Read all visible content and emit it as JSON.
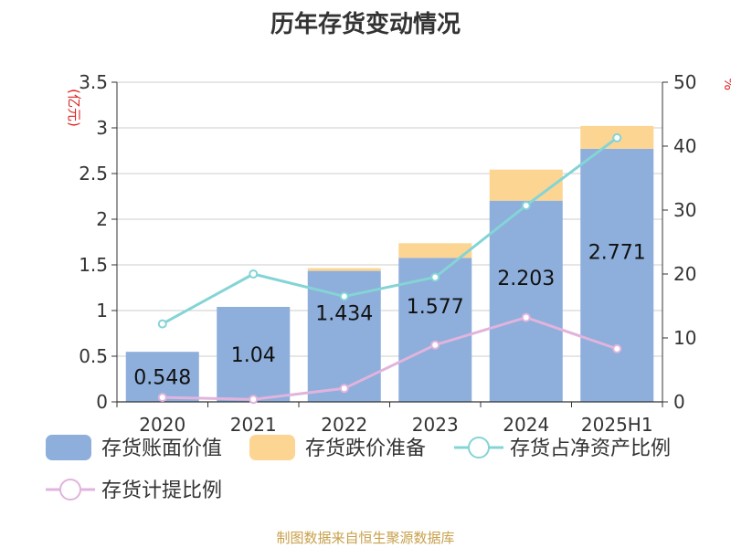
{
  "chart_data": {
    "type": "bar",
    "title": "历年存货变动情况",
    "categories": [
      "2020",
      "2021",
      "2022",
      "2023",
      "2024",
      "2025H1"
    ],
    "y_left": {
      "unit_label": "(亿元)",
      "ylim": [
        0,
        3.5
      ],
      "ticks": [
        "0",
        "0.5",
        "1",
        "1.5",
        "2",
        "2.5",
        "3",
        "3.5"
      ]
    },
    "y_right": {
      "unit_label": "%",
      "ylim": [
        0,
        50
      ],
      "ticks": [
        "0",
        "10",
        "20",
        "30",
        "40",
        "50"
      ]
    },
    "series": [
      {
        "name": "存货账面价值",
        "kind": "bar",
        "axis": "left",
        "color": "#8eaedb",
        "values": [
          0.548,
          1.04,
          1.434,
          1.577,
          2.203,
          2.771
        ],
        "labels": [
          "0.548",
          "1.04",
          "1.434",
          "1.577",
          "2.203",
          "2.771"
        ]
      },
      {
        "name": "存货跌价准备",
        "kind": "bar",
        "axis": "left",
        "stacked": true,
        "color": "#fcd592",
        "values": [
          0.0,
          0.0,
          0.03,
          0.16,
          0.34,
          0.25
        ]
      },
      {
        "name": "存货占净资产比例",
        "kind": "line",
        "axis": "right",
        "color": "#84d4d6",
        "values": [
          12.2,
          20.0,
          16.5,
          19.5,
          30.7,
          41.3
        ]
      },
      {
        "name": "存货计提比例",
        "kind": "line",
        "axis": "right",
        "color": "#e0b4dc",
        "values": [
          0.7,
          0.4,
          2.1,
          8.9,
          13.2,
          8.3
        ]
      }
    ],
    "grid": true,
    "legend_position": "bottom"
  },
  "footer": {
    "source": "制图数据来自恒生聚源数据库"
  }
}
